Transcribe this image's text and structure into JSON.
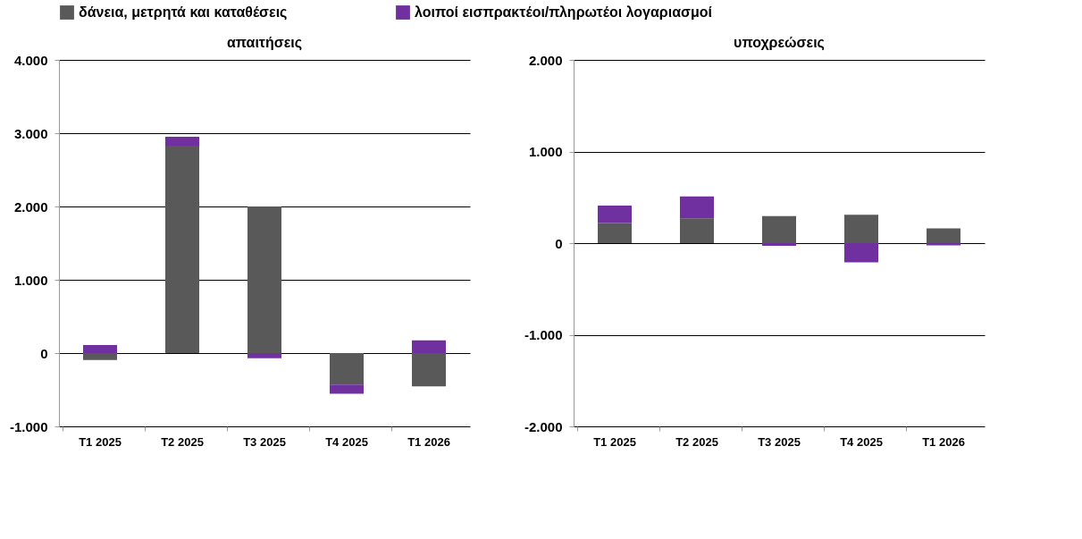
{
  "chart_data": [
    {
      "type": "bar",
      "title": "απαιτήσεις",
      "stacked": true,
      "categories": [
        "T1 2025",
        "T2 2025",
        "T3 2025",
        "T4 2025",
        "T1 2026"
      ],
      "series": [
        {
          "name": "δάνεια, μετρητά και καταθέσεις",
          "color": "#595959",
          "values": [
            -95,
            2830,
            2000,
            -430,
            -455
          ]
        },
        {
          "name": "λοιποί εισπρακτέοι/πληρωτέοι λογαριασμοί",
          "color": "#7030a0",
          "values": [
            110,
            120,
            -70,
            -125,
            175
          ]
        }
      ],
      "ylim": [
        -1000,
        4000
      ],
      "yticks": [
        {
          "value": -1000,
          "label": "-1.000"
        },
        0,
        {
          "value": 1000,
          "label": "1.000"
        },
        {
          "value": 2000,
          "label": "2.000"
        },
        {
          "value": 3000,
          "label": "3.000"
        },
        {
          "value": 4000,
          "label": "4.000"
        }
      ],
      "grid": "y",
      "legend": "top"
    },
    {
      "type": "bar",
      "title": "υποχρεώσεις",
      "stacked": true,
      "categories": [
        "T1 2025",
        "T2 2025",
        "T3 2025",
        "T4 2025",
        "T1 2026"
      ],
      "series": [
        {
          "name": "δάνεια, μετρητά και καταθέσεις",
          "color": "#595959",
          "values": [
            220,
            270,
            295,
            310,
            160
          ]
        },
        {
          "name": "λοιποί εισπρακτέοι/πληρωτέοι λογαριασμοί",
          "color": "#7030a0",
          "values": [
            190,
            240,
            -30,
            -210,
            -25
          ]
        }
      ],
      "ylim": [
        -2000,
        2000
      ],
      "yticks": [
        {
          "value": -2000,
          "label": "-2.000"
        },
        {
          "value": -1000,
          "label": "-1.000"
        },
        0,
        {
          "value": 1000,
          "label": "1.000"
        },
        {
          "value": 2000,
          "label": "2.000"
        }
      ],
      "grid": "y",
      "legend": "top"
    }
  ]
}
